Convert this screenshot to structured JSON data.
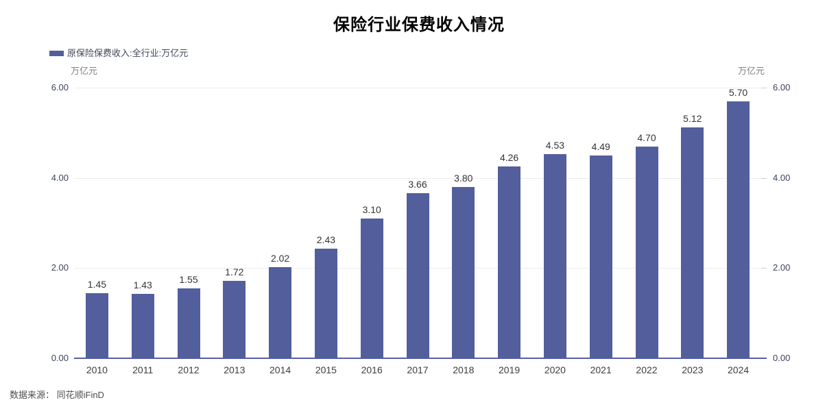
{
  "title": "保险行业保费收入情况",
  "legend": {
    "label": "原保险保费收入:全行业:万亿元",
    "marker_color": "#535E9D"
  },
  "unit_left": "万亿元",
  "unit_right": "万亿元",
  "source": "数据来源： 同花顺iFinD",
  "colors": {
    "bar": "#535E9D",
    "axis_line": "#575FA0",
    "gridline": "#ececf2",
    "y_tick_label": "#3b425c",
    "value_label": "#333333",
    "unit_label": "#7f7f7f",
    "title": "#000000"
  },
  "chart_data": {
    "type": "bar",
    "title": "保险行业保费收入情况",
    "series_name": "原保险保费收入:全行业:万亿元",
    "categories": [
      "2010",
      "2011",
      "2012",
      "2013",
      "2014",
      "2015",
      "2016",
      "2017",
      "2018",
      "2019",
      "2020",
      "2021",
      "2022",
      "2023",
      "2024"
    ],
    "values": [
      1.45,
      1.43,
      1.55,
      1.72,
      2.02,
      2.43,
      3.1,
      3.66,
      3.8,
      4.26,
      4.53,
      4.49,
      4.7,
      5.12,
      5.7
    ],
    "value_labels": [
      "1.45",
      "1.43",
      "1.55",
      "1.72",
      "2.02",
      "2.43",
      "3.10",
      "3.66",
      "3.80",
      "4.26",
      "4.53",
      "4.49",
      "4.70",
      "5.12",
      "5.70"
    ],
    "xlabel": "",
    "ylabel": "万亿元",
    "ylim": [
      0,
      6
    ],
    "yticks": [
      0,
      2,
      4,
      6
    ],
    "ytick_labels": [
      "0.00",
      "2.00",
      "4.00",
      "6.00"
    ],
    "grid": true,
    "legend_position": "top-left",
    "dual_y_axis": true,
    "source": "数据来源： 同花顺iFinD"
  }
}
